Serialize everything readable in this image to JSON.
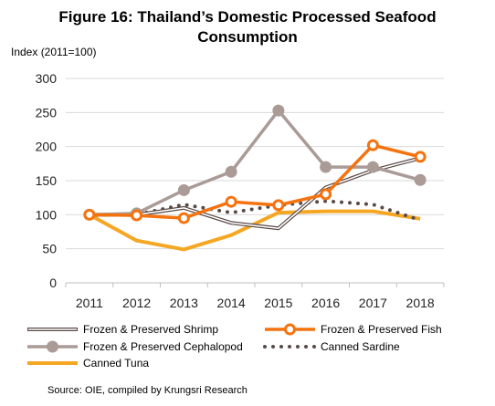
{
  "chart_data": {
    "type": "line",
    "title": [
      "Figure 16: Thailand’s Domestic Processed Seafood",
      "Consumption"
    ],
    "ylabel": "Index (2011=100)",
    "xlabel": "",
    "x": [
      "2011",
      "2012",
      "2013",
      "2014",
      "2015",
      "2016",
      "2017",
      "2018"
    ],
    "ylim": [
      0,
      300
    ],
    "yticks": [
      0,
      50,
      100,
      150,
      200,
      250,
      300
    ],
    "grid": "horizontal",
    "legend": "bottom",
    "series": [
      {
        "name": "Frozen & Preserved Shrimp",
        "values": [
          100,
          100,
          110,
          88,
          80,
          140,
          165,
          183
        ],
        "color": "#594a46",
        "style": "double"
      },
      {
        "name": "Frozen & Preserved Fish",
        "values": [
          100,
          99,
          95,
          119,
          114,
          130,
          202,
          185
        ],
        "color": "#f5730f",
        "style": "line-open-marker"
      },
      {
        "name": "Frozen & Preserved Cephalopod",
        "values": [
          100,
          102,
          136,
          163,
          253,
          170,
          170,
          151
        ],
        "color": "#aa9b97",
        "style": "line-filled-marker"
      },
      {
        "name": "Canned Sardine",
        "values": [
          100,
          100,
          115,
          103,
          114,
          120,
          115,
          92
        ],
        "color": "#594a46",
        "style": "dotted"
      },
      {
        "name": "Canned Tuna",
        "values": [
          100,
          62,
          49,
          70,
          103,
          105,
          105,
          94
        ],
        "color": "#f5a623",
        "style": "thick"
      }
    ]
  },
  "source": "Source: OIE, compiled by Krungsri Research"
}
